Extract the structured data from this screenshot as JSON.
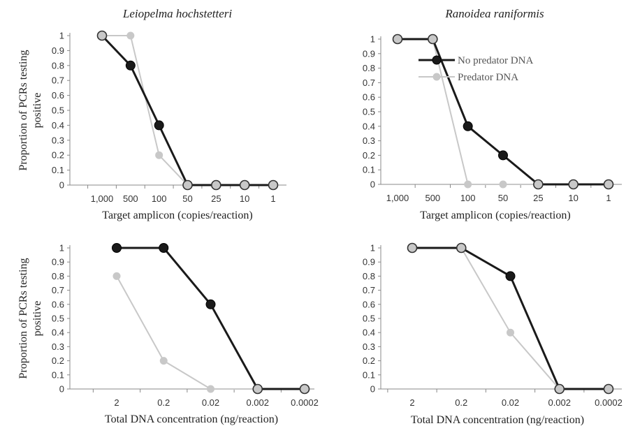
{
  "colors": {
    "no_predator": "#1a1a1a",
    "predator": "#c8c8c8",
    "axis": "#888888"
  },
  "chart_data": [
    {
      "type": "line",
      "title": "Leiopelma hochstetteri",
      "xlabel": "Target amplicon (copies/reaction)",
      "ylabel": "Proportion of PCRs testing positive",
      "categories": [
        "1,000",
        "500",
        "100",
        "50",
        "25",
        "10",
        "1"
      ],
      "ylim": [
        0,
        1
      ],
      "yticks": [
        "0",
        "0.1",
        "0.2",
        "0.3",
        "0.4",
        "0.5",
        "0.6",
        "0.7",
        "0.8",
        "0.9",
        "1"
      ],
      "grid": false,
      "series": [
        {
          "name": "No predator DNA",
          "values": [
            1,
            0.8,
            0.4,
            0,
            0,
            0,
            0
          ]
        },
        {
          "name": "Predator DNA",
          "values": [
            1,
            1,
            0.2,
            0,
            0,
            0,
            0
          ]
        }
      ]
    },
    {
      "type": "line",
      "title": "Ranoidea raniformis",
      "xlabel": "Target amplicon (copies/reaction)",
      "ylabel": "",
      "categories": [
        "1,000",
        "500",
        "100",
        "50",
        "25",
        "10",
        "1"
      ],
      "ylim": [
        0,
        1
      ],
      "yticks": [
        "0",
        "0.1",
        "0.2",
        "0.3",
        "0.4",
        "0.5",
        "0.6",
        "0.7",
        "0.8",
        "0.9",
        "1"
      ],
      "grid": false,
      "legend": "top-right",
      "series": [
        {
          "name": "No predator DNA",
          "values": [
            1,
            1,
            0.4,
            0.2,
            0,
            0,
            0
          ]
        },
        {
          "name": "Predator DNA",
          "values": [
            1,
            1,
            0,
            0,
            0,
            0,
            0
          ]
        }
      ]
    },
    {
      "type": "line",
      "title": "",
      "xlabel": "Total DNA concentration (ng/reaction)",
      "ylabel": "Proportion of PCRs testing positive",
      "categories": [
        "2",
        "0.2",
        "0.02",
        "0.002",
        "0.0002"
      ],
      "ylim": [
        0,
        1
      ],
      "yticks": [
        "0",
        "0.1",
        "0.2",
        "0.3",
        "0.4",
        "0.5",
        "0.6",
        "0.7",
        "0.8",
        "0.9",
        "1"
      ],
      "grid": false,
      "series": [
        {
          "name": "No predator DNA",
          "values": [
            1,
            1,
            0.6,
            0,
            0
          ]
        },
        {
          "name": "Predator DNA",
          "values": [
            0.8,
            0.2,
            0,
            0,
            0
          ]
        }
      ]
    },
    {
      "type": "line",
      "title": "",
      "xlabel": "Total DNA concentration (ng/reaction)",
      "ylabel": "",
      "categories": [
        "2",
        "0.2",
        "0.02",
        "0.002",
        "0.0002"
      ],
      "ylim": [
        0,
        1
      ],
      "yticks": [
        "0",
        "0.1",
        "0.2",
        "0.3",
        "0.4",
        "0.5",
        "0.6",
        "0.7",
        "0.8",
        "0.9",
        "1"
      ],
      "grid": false,
      "series": [
        {
          "name": "No predator DNA",
          "values": [
            1,
            1,
            0.8,
            0,
            0
          ]
        },
        {
          "name": "Predator DNA",
          "values": [
            1,
            1,
            0.4,
            0,
            0
          ]
        }
      ]
    }
  ]
}
